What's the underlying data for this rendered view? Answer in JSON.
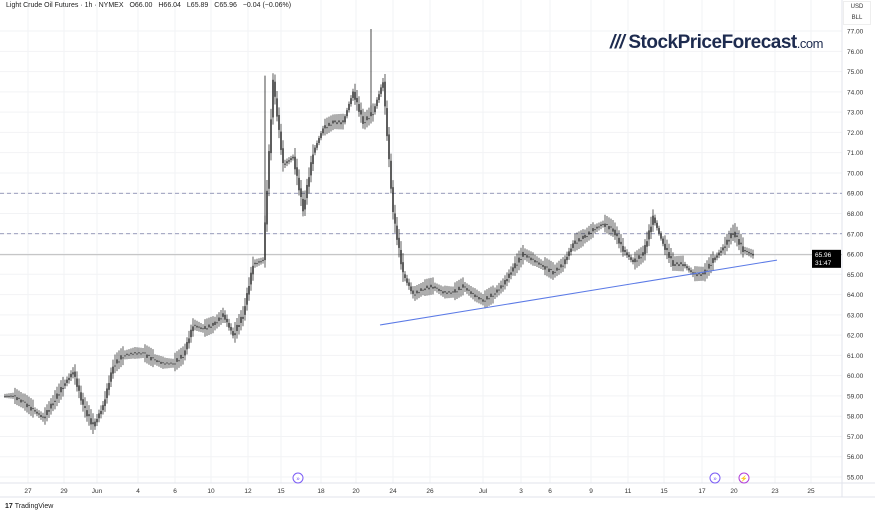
{
  "header": {
    "symbol": "Light Crude Oil Futures · 1h · NYMEX",
    "open": "O66.00",
    "high": "H66.04",
    "low": "L65.89",
    "close": "C65.96",
    "change": "−0.04 (−0.06%)"
  },
  "currency": {
    "unit": "USD",
    "multiplier": "BLL"
  },
  "logo": {
    "text": "StockPriceForecast",
    "domain": ".com"
  },
  "footer": {
    "brand": "TradingView"
  },
  "colors": {
    "candles": "#1a1a1a",
    "trendline": "#5b7ae6",
    "levels": "#7a7fa8",
    "price_tag": "#000000",
    "event_icon": "#7b5cf5",
    "earnings_icon": "#b03fd8"
  },
  "chart_data": {
    "type": "candlestick",
    "title": "",
    "xlabel": "",
    "ylabel": "",
    "ylim": [
      55,
      77
    ],
    "y_ticks": [
      "55.00",
      "56.00",
      "57.00",
      "58.00",
      "59.00",
      "60.00",
      "61.00",
      "62.00",
      "63.00",
      "64.00",
      "65.00",
      "66.00",
      "67.00",
      "68.00",
      "69.00",
      "70.00",
      "71.00",
      "72.00",
      "73.00",
      "74.00",
      "75.00",
      "76.00",
      "77.00"
    ],
    "x_ticks": [
      "27",
      "29",
      "Jun",
      "4",
      "6",
      "10",
      "12",
      "15",
      "18",
      "20",
      "24",
      "26",
      "Jul",
      "3",
      "6",
      "9",
      "11",
      "15",
      "17",
      "20",
      "23",
      "25"
    ],
    "grid": true,
    "approx_close_path": [
      59.0,
      58.7,
      58.3,
      57.9,
      58.7,
      59.5,
      60.2,
      58.5,
      57.5,
      58.5,
      60.5,
      61,
      61.1,
      61.1,
      60.8,
      60.6,
      60.6,
      61,
      62.5,
      62.3,
      62.5,
      63,
      62,
      63,
      65.5,
      65.7,
      74.5,
      70.4,
      70.8,
      68.2,
      71,
      72.2,
      72.5,
      72.5,
      74,
      72.5,
      73,
      74.5,
      68,
      65,
      64,
      64.3,
      64.4,
      64.1,
      64.1,
      64.4,
      64,
      63.7,
      64,
      64.5,
      65.3,
      66,
      65.7,
      65.4,
      65.1,
      65.5,
      66.5,
      66.8,
      67.2,
      67.5,
      67.2,
      66.2,
      65.6,
      66,
      67.8,
      66.5,
      65.5,
      65.5,
      65,
      65,
      65.7,
      66.3,
      67.1,
      66.2,
      65.96
    ],
    "horizontal_levels": [
      69.0,
      67.0
    ],
    "trendline": {
      "from": {
        "date": "Jun 23",
        "price": 62.5
      },
      "to": {
        "date": "Jul 23",
        "price": 65.7
      }
    },
    "last_price": {
      "value": "65.96",
      "countdown": "31:47"
    },
    "events": [
      {
        "type": "economic",
        "date": "Jun 16"
      },
      {
        "type": "economic",
        "date": "Jul 18"
      },
      {
        "type": "earnings",
        "date": "Jul 21"
      }
    ]
  }
}
